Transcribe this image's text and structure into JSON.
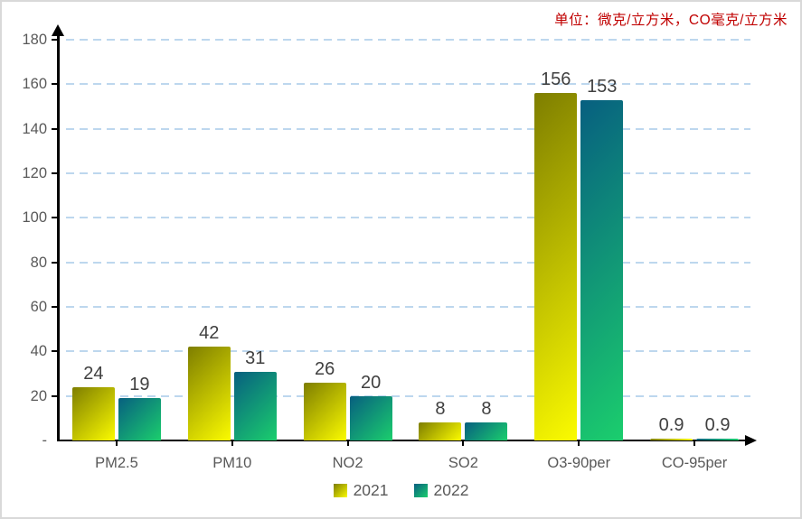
{
  "chart_data": {
    "type": "bar",
    "title": "单位：微克/立方米，CO毫克/立方米",
    "title_color": "#C00000",
    "categories": [
      "PM2.5",
      "PM10",
      "NO2",
      "SO2",
      "O3-90per",
      "CO-95per"
    ],
    "series": [
      {
        "name": "2021",
        "values": [
          24,
          42,
          26,
          8,
          156,
          0.9
        ],
        "labels": [
          "24",
          "42",
          "26",
          "8",
          "156",
          "0.9"
        ],
        "color_top": "#7E7E00",
        "color_bottom": "#FBFB00"
      },
      {
        "name": "2022",
        "values": [
          19,
          31,
          20,
          8,
          153,
          0.9
        ],
        "labels": [
          "19",
          "31",
          "20",
          "8",
          "153",
          "0.9"
        ],
        "color_top": "#075F80",
        "color_bottom": "#1BCE6D"
      }
    ],
    "xlabel": "",
    "ylabel": "",
    "ylim": [
      0,
      180
    ],
    "ytick_values": [
      0,
      20,
      40,
      60,
      80,
      100,
      120,
      140,
      160,
      180
    ],
    "ytick_labels": [
      "-",
      "20",
      "40",
      "60",
      "80",
      "100",
      "120",
      "140",
      "160",
      "180"
    ],
    "grid": "horizontal-dashed",
    "gridline_color": "#BDD7EE",
    "axis_color": "#000000",
    "tick_label_color": "#595959",
    "value_label_color": "#404040",
    "legend_position": "bottom",
    "frame_border_color": "#D9D9D9",
    "background_color": "#FFFFFF"
  }
}
